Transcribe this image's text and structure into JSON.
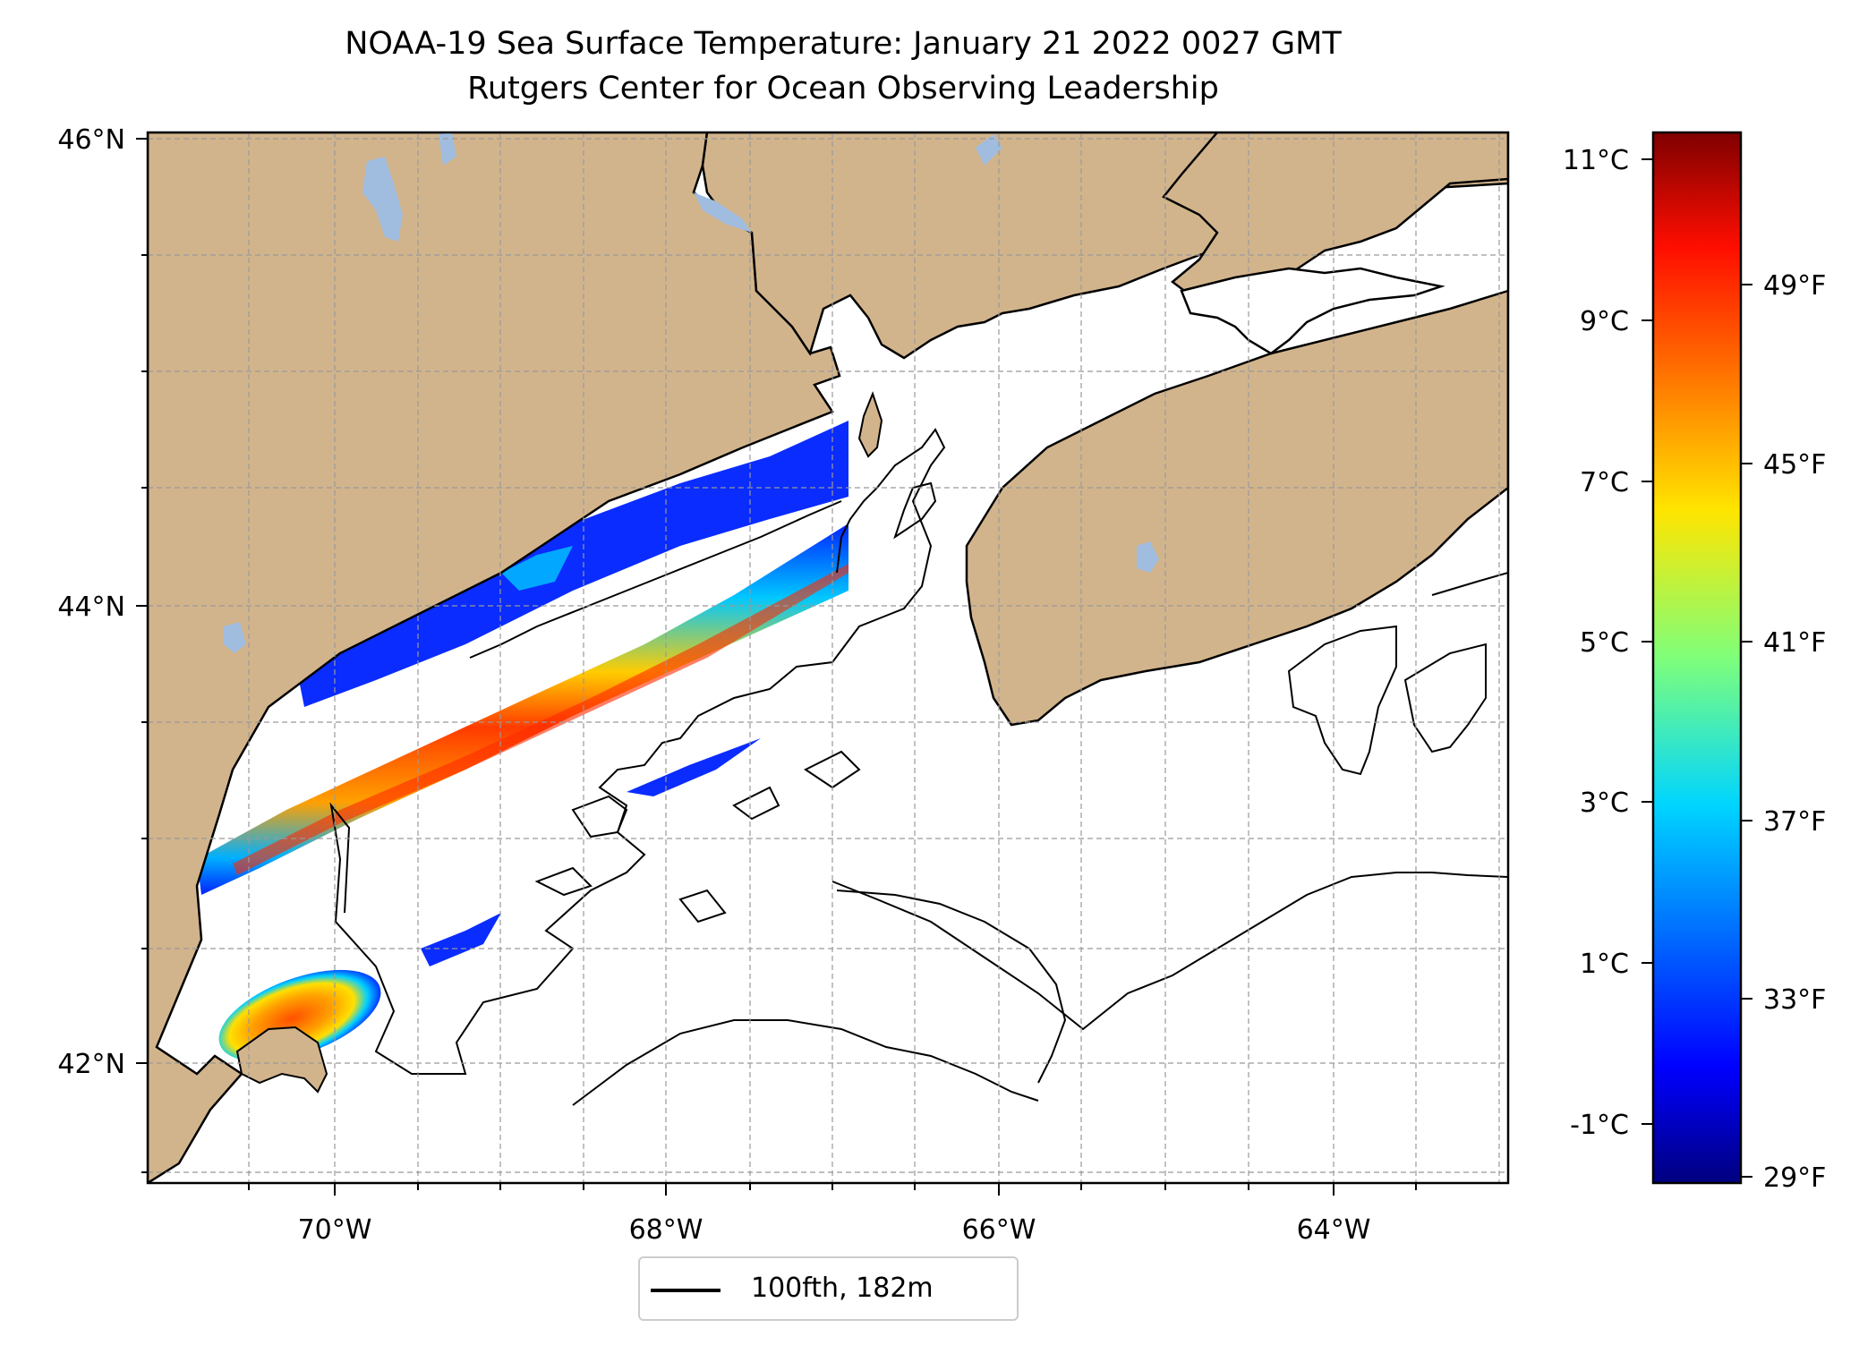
{
  "title": "NOAA-19 Sea Surface Temperature: January 21 2022 0027 GMT",
  "subtitle": "Rutgers Center for Ocean Observing Leadership",
  "map": {
    "lon_range": [
      -71.0,
      -63.0
    ],
    "lat_range": [
      41.5,
      46.0
    ],
    "lat_ticks": [
      "46°N",
      "44°N",
      "42°N"
    ],
    "lon_ticks": [
      "70°W",
      "68°W",
      "66°W",
      "64°W"
    ],
    "gridlines": "dashed",
    "colors": {
      "land": "#d2b48c",
      "lakes": "#a0bde0",
      "ocean": "#ffffff",
      "coastline": "#000000"
    }
  },
  "colorbar": {
    "colormap": "jet",
    "celsius_ticks": [
      "11°C",
      "9°C",
      "7°C",
      "5°C",
      "3°C",
      "1°C",
      "-1°C"
    ],
    "fahrenheit_ticks": [
      "49°F",
      "45°F",
      "41°F",
      "37°F",
      "33°F",
      "29°F"
    ]
  },
  "legend": {
    "label": "100fth, 182m"
  },
  "chart_data": {
    "type": "heatmap",
    "title": "NOAA-19 Sea Surface Temperature: January 21 2022 0027 GMT",
    "subtitle": "Rutgers Center for Ocean Observing Leadership",
    "xlim": [
      -71.0,
      -63.0
    ],
    "ylim": [
      41.5,
      46.0
    ],
    "value_range_C": [
      -1.7,
      11.5
    ],
    "value_range_F": [
      29,
      52.7
    ],
    "observed_bands": [
      {
        "name": "warm offshore band",
        "temperature_range_C": [
          2,
          9
        ]
      },
      {
        "name": "Cape Cod / Massachusetts Bay patch",
        "temperature_range_C": [
          3,
          9
        ]
      },
      {
        "name": "coastal Gulf of Maine strip",
        "temperature_range_C": [
          0,
          3
        ]
      },
      {
        "name": "Georges Basin strip",
        "temperature_range_C": [
          0,
          3
        ]
      }
    ]
  }
}
